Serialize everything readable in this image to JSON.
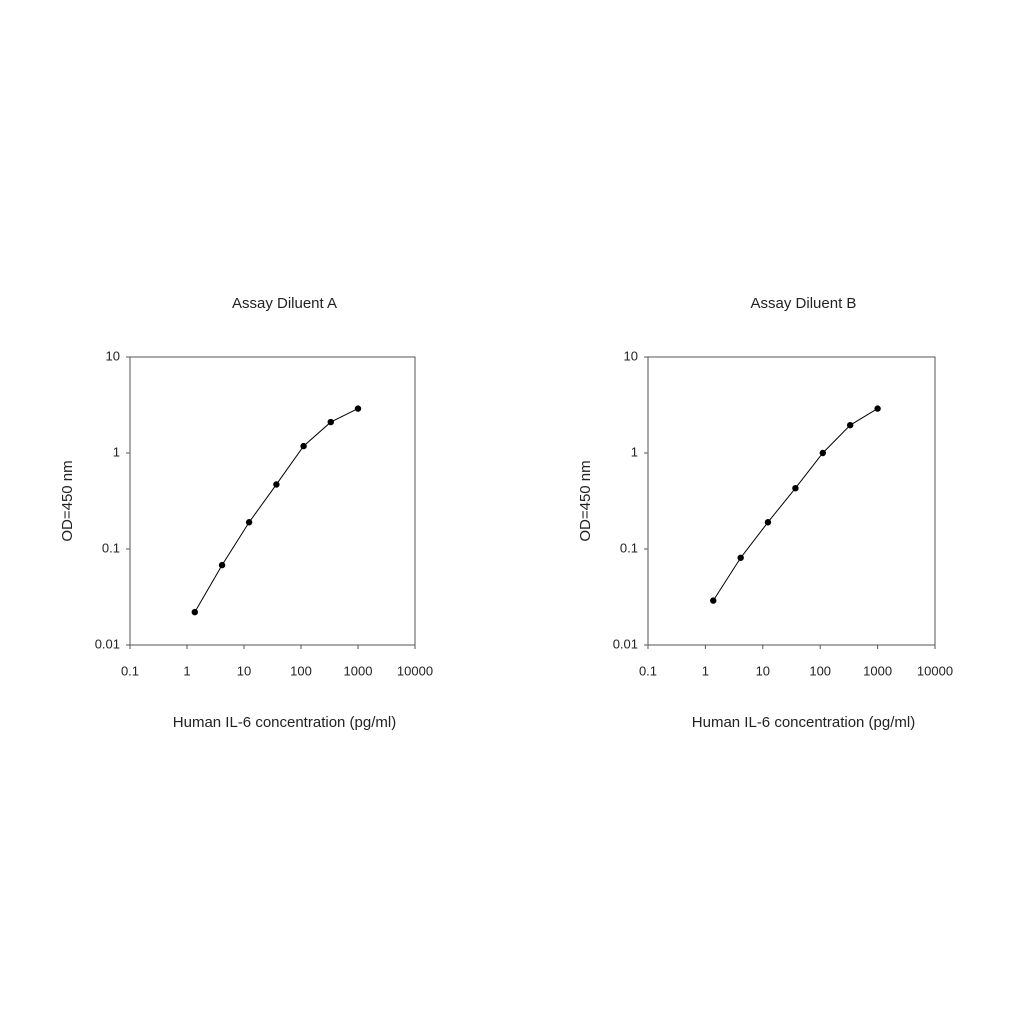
{
  "chart_data": [
    {
      "type": "line",
      "title": "Assay Diluent A",
      "xlabel": "Human IL-6 concentration (pg/ml)",
      "ylabel": "OD=450 nm",
      "x": [
        1.37,
        4.12,
        12.3,
        37,
        111,
        333,
        1000
      ],
      "values": [
        0.022,
        0.068,
        0.19,
        0.47,
        1.18,
        2.1,
        2.9
      ],
      "color": "#000000",
      "xscale": "log",
      "yscale": "log",
      "xlim": [
        0.1,
        10000
      ],
      "xticks": [
        0.1,
        1,
        10,
        100,
        1000,
        10000
      ],
      "ylim": [
        0.01,
        10
      ],
      "yticks": [
        0.01,
        0.1,
        1,
        10
      ],
      "grid": false
    },
    {
      "type": "line",
      "title": "Assay Diluent B",
      "xlabel": "Human IL-6 concentration (pg/ml)",
      "ylabel": "OD=450 nm",
      "x": [
        1.37,
        4.12,
        12.3,
        37,
        111,
        333,
        1000
      ],
      "values": [
        0.029,
        0.081,
        0.19,
        0.43,
        1.0,
        1.95,
        2.9
      ],
      "color": "#000000",
      "xscale": "log",
      "yscale": "log",
      "xlim": [
        0.1,
        10000
      ],
      "xticks": [
        0.1,
        1,
        10,
        100,
        1000,
        10000
      ],
      "ylim": [
        0.01,
        10
      ],
      "yticks": [
        0.01,
        0.1,
        1,
        10
      ],
      "grid": false
    }
  ]
}
